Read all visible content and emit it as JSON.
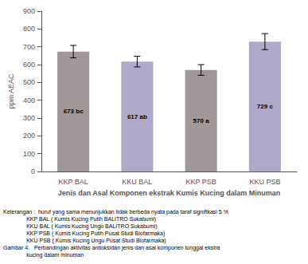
{
  "chart_data": {
    "type": "bar",
    "categories": [
      "KKP BAL",
      "KKU BAL",
      "KKP PSB",
      "KKU PSB"
    ],
    "values": [
      673,
      617,
      570,
      729
    ],
    "errors": [
      35,
      30,
      30,
      45
    ],
    "colors": [
      "#a09898",
      "#b0a8c8",
      "#a09898",
      "#b0a8c8"
    ],
    "data_labels": true,
    "value_labels": [
      "673 bc",
      "617 ab",
      "570 a",
      "729 c"
    ],
    "ylabel": "ppm AEAC",
    "xlabel": "Jenis dan Asal Komponen ekstrak Kumis Kucing dalam Minuman",
    "ylim": [
      0,
      900
    ],
    "yticks": [
      0,
      100,
      200,
      300,
      400,
      500,
      600,
      700,
      800,
      900
    ],
    "grid": false,
    "annotations": [
      "Keterangan :  huruf yang sama menunjukkan tidak berbeda nyata pada taraf signifikasi 5 %",
      "               KKP BAL ( Kumis Kucing Putih BALITRO Sukabumi)",
      "               KKU BAL ( Kumis Kucing Ungu BALITRO Sukabumi)",
      "               KKP PSB ( Kumis Kucing Putih Pusat Studi Biofarmaka)",
      "               KKU PSB ( Kumis Kucing Ungu Pusat Studi Biofarmaka)",
      "Gambar 4.   Perbandingan aktivitas antioksidan jenis dan asal komponen tunggal ekstra",
      "               kucing dalam minuman"
    ]
  }
}
